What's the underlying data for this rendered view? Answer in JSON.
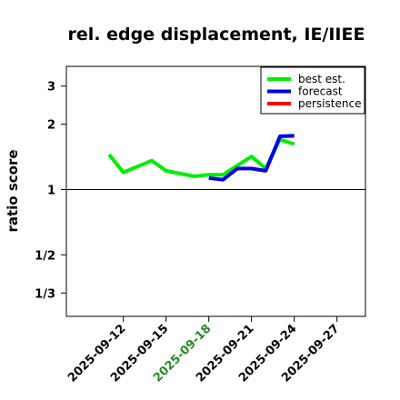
{
  "chart_data": {
    "type": "line",
    "title": "rel. edge displacement, IE/IIEE",
    "ylabel": "ratio score",
    "xlabel": "",
    "y_scale": "log",
    "ylim": [
      0.26,
      3.7
    ],
    "xlim": [
      "2025-09-08",
      "2025-09-29"
    ],
    "reference_line": 1,
    "y_ticks": [
      {
        "value": 0.3333,
        "label": "1/3"
      },
      {
        "value": 0.5,
        "label": "1/2"
      },
      {
        "value": 1,
        "label": "1"
      },
      {
        "value": 2,
        "label": "2"
      },
      {
        "value": 3,
        "label": "3"
      }
    ],
    "x_ticks": [
      {
        "date": "2025-09-12",
        "label": "2025-09-12",
        "color": "#000000"
      },
      {
        "date": "2025-09-15",
        "label": "2025-09-15",
        "color": "#000000"
      },
      {
        "date": "2025-09-18",
        "label": "2025-09-18",
        "color": "#228b22"
      },
      {
        "date": "2025-09-21",
        "label": "2025-09-21",
        "color": "#000000"
      },
      {
        "date": "2025-09-24",
        "label": "2025-09-24",
        "color": "#000000"
      },
      {
        "date": "2025-09-27",
        "label": "2025-09-27",
        "color": "#000000"
      }
    ],
    "legend_position": "top-right",
    "series": [
      {
        "name": "best est.",
        "color": "#00ee00",
        "points": [
          {
            "x": "2025-09-11",
            "y": 1.45
          },
          {
            "x": "2025-09-12",
            "y": 1.2
          },
          {
            "x": "2025-09-14",
            "y": 1.36
          },
          {
            "x": "2025-09-15",
            "y": 1.22
          },
          {
            "x": "2025-09-17",
            "y": 1.15
          },
          {
            "x": "2025-09-18",
            "y": 1.17
          },
          {
            "x": "2025-09-19",
            "y": 1.17
          },
          {
            "x": "2025-09-21",
            "y": 1.42
          },
          {
            "x": "2025-09-22",
            "y": 1.25
          },
          {
            "x": "2025-09-23",
            "y": 1.7
          },
          {
            "x": "2025-09-24",
            "y": 1.62
          }
        ]
      },
      {
        "name": "forecast",
        "color": "#0000ee",
        "points": [
          {
            "x": "2025-09-18",
            "y": 1.13
          },
          {
            "x": "2025-09-19",
            "y": 1.11
          },
          {
            "x": "2025-09-20",
            "y": 1.25
          },
          {
            "x": "2025-09-21",
            "y": 1.25
          },
          {
            "x": "2025-09-22",
            "y": 1.22
          },
          {
            "x": "2025-09-23",
            "y": 1.76
          },
          {
            "x": "2025-09-24",
            "y": 1.77
          }
        ]
      },
      {
        "name": "persistence",
        "color": "#ff0000",
        "points": []
      }
    ]
  }
}
